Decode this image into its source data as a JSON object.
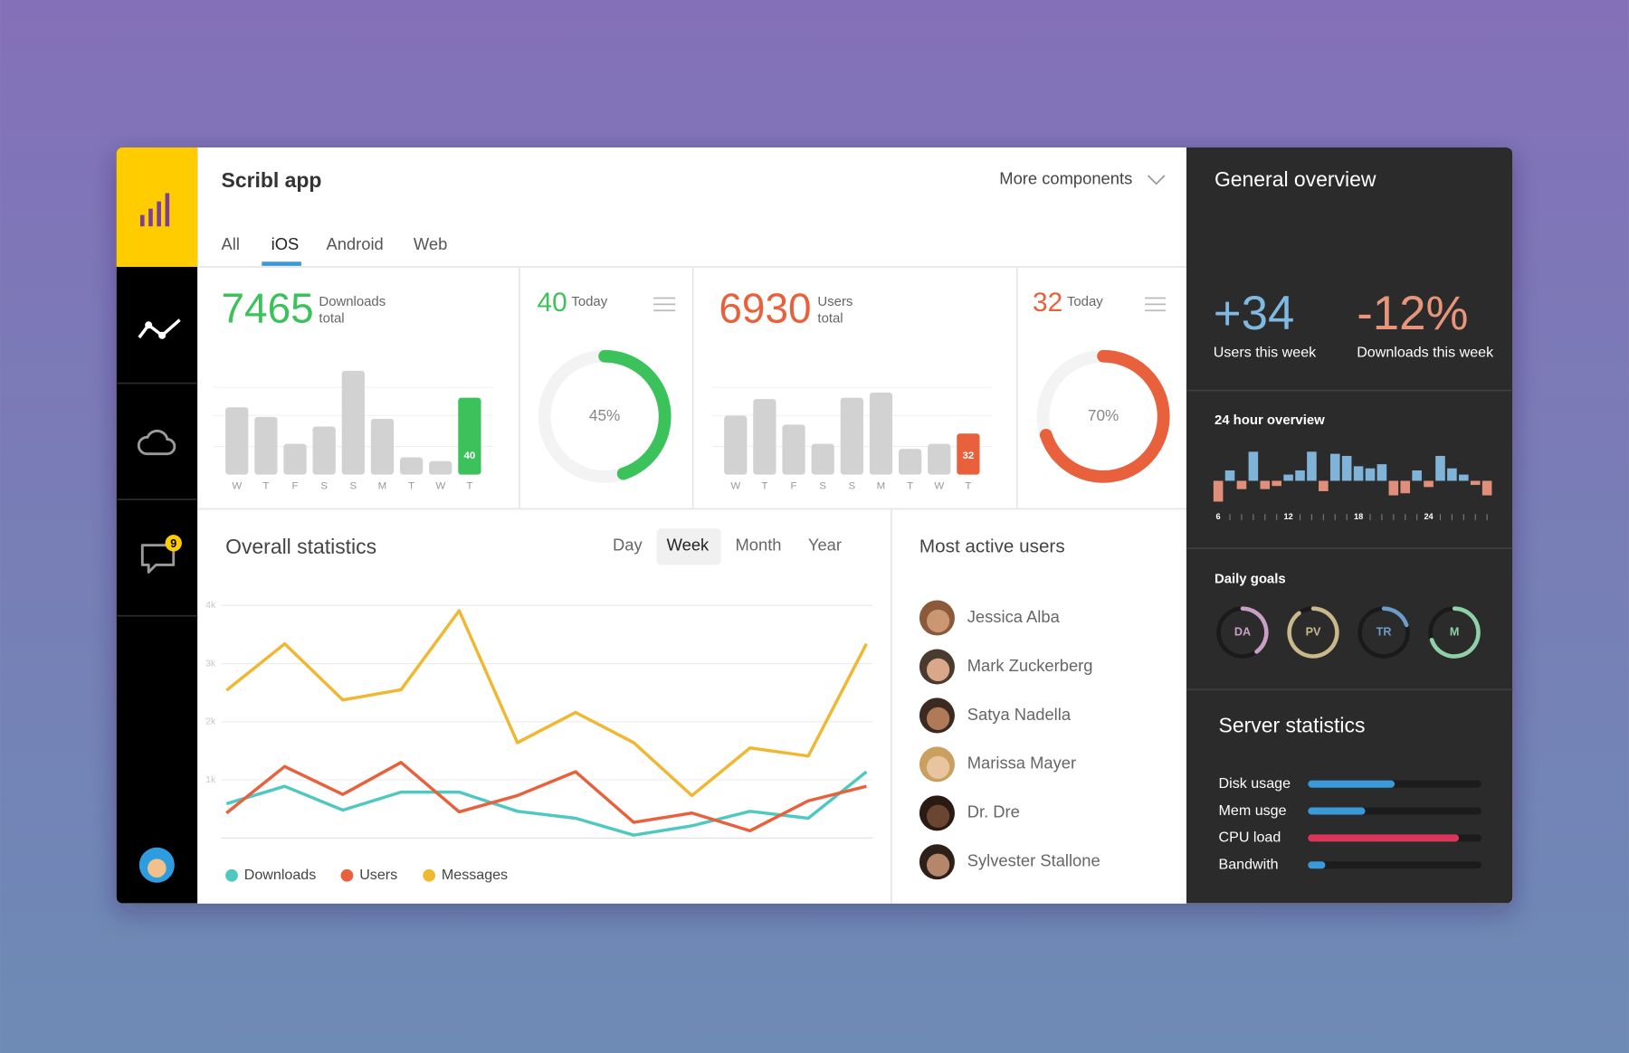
{
  "sidebar": {
    "badge": 9
  },
  "header": {
    "title": "Scribl app",
    "more": "More components",
    "tabs": [
      "All",
      "iOS",
      "Android",
      "Web"
    ]
  },
  "downloads": {
    "total": 7465,
    "total_label": "Downloads",
    "total_sub": "total",
    "today": 40,
    "today_label": "Today",
    "percent": {
      "value": 45,
      "label": "45%"
    },
    "color": "#3cc25b",
    "chart": {
      "type": "bar",
      "categories": [
        "W",
        "T",
        "F",
        "S",
        "S",
        "M",
        "T",
        "W",
        "T"
      ],
      "values": [
        35,
        30,
        16,
        25,
        54,
        29,
        9,
        7,
        40
      ],
      "ylim": [
        0,
        60
      ],
      "color": "#d2d2d2",
      "highlight": "#3cc25b"
    }
  },
  "users": {
    "total": 6930,
    "total_label": "Users",
    "total_sub": "total",
    "today": 32,
    "today_label": "Today",
    "percent": {
      "value": 70,
      "label": "70%"
    },
    "color": "#e8603c",
    "chart": {
      "type": "bar",
      "categories": [
        "W",
        "T",
        "F",
        "S",
        "S",
        "M",
        "T",
        "W",
        "T"
      ],
      "values": [
        46,
        59,
        39,
        24,
        60,
        64,
        20,
        24,
        32
      ],
      "ylim": [
        0,
        90
      ],
      "color": "#d2d2d2",
      "highlight": "#e8603c"
    }
  },
  "overall": {
    "title": "Overall statistics",
    "periods": [
      "Day",
      "Week",
      "Month",
      "Year"
    ],
    "chart_data": {
      "type": "line",
      "categories": [
        null,
        null,
        null,
        null,
        null,
        null,
        null,
        null,
        null,
        null,
        null,
        null
      ],
      "series": [
        {
          "name": "Downloads",
          "color": "#4fc8c0",
          "values": [
            590,
            890,
            480,
            790,
            790,
            460,
            340,
            50,
            210,
            460,
            340,
            1140
          ]
        },
        {
          "name": "Users",
          "color": "#e8603c",
          "values": [
            430,
            1230,
            750,
            1300,
            450,
            730,
            1140,
            270,
            430,
            125,
            640,
            890
          ]
        },
        {
          "name": "Messages",
          "color": "#f0b731",
          "values": [
            2540,
            3340,
            2375,
            2550,
            3910,
            1640,
            2160,
            1640,
            730,
            1550,
            1410,
            3340
          ]
        }
      ],
      "ylim": [
        0,
        4000
      ],
      "yticks": [
        {
          "value": 1000,
          "label": "1k"
        },
        {
          "value": 2000,
          "label": "2k"
        },
        {
          "value": 3000,
          "label": "3k"
        },
        {
          "value": 4000,
          "label": "4k"
        }
      ],
      "grid": true
    }
  },
  "active_users": {
    "title": "Most active users",
    "names": [
      "Jessica Alba",
      "Mark Zuckerberg",
      "Satya Nadella",
      "Marissa Mayer",
      "Dr. Dre",
      "Sylvester Stallone"
    ]
  },
  "overview": {
    "title": "General overview",
    "stats": [
      {
        "value": "+34",
        "label": "Users this week",
        "color": "#7fb8e0"
      },
      {
        "value": "-12%",
        "label": "Downloads this week",
        "color": "#e8957a"
      }
    ],
    "hourly": {
      "title": "24 hour overview",
      "type": "bar",
      "x": [
        6,
        7,
        8,
        9,
        10,
        11,
        12,
        13,
        14,
        15,
        16,
        17,
        18,
        19,
        20,
        21,
        22,
        23,
        24,
        25,
        26,
        27,
        28,
        29
      ],
      "values": [
        -20,
        10,
        -8,
        28,
        -8,
        -5,
        6,
        10,
        28,
        -10,
        26,
        24,
        14,
        12,
        16,
        -14,
        -12,
        10,
        -6,
        24,
        12,
        6,
        -4,
        -14
      ],
      "xlim": [
        5.5,
        29.5
      ],
      "xticks": [
        6,
        12,
        18,
        24
      ],
      "ylim": [
        -30,
        30
      ],
      "up_color": "#7fb3d8",
      "down_color": "#e0907a"
    },
    "goals": {
      "title": "Daily goals",
      "items": [
        {
          "label": "DA",
          "value": 40,
          "color": "#c9a0c4"
        },
        {
          "label": "PV",
          "value": 90,
          "color": "#c8b88a"
        },
        {
          "label": "TR",
          "value": 20,
          "color": "#6a9ec8"
        },
        {
          "label": "M",
          "value": 70,
          "color": "#8fd0a8"
        }
      ]
    },
    "server": {
      "title": "Server statistics",
      "xlim": [
        0,
        100
      ],
      "items": [
        {
          "label": "Disk usage",
          "value": 50,
          "color": "#3a9ad9"
        },
        {
          "label": "Mem usge",
          "value": 33,
          "color": "#3a9ad9"
        },
        {
          "label": "CPU load",
          "value": 87,
          "color": "#d9375a"
        },
        {
          "label": "Bandwith",
          "value": 10,
          "color": "#3a9ad9"
        }
      ]
    }
  }
}
